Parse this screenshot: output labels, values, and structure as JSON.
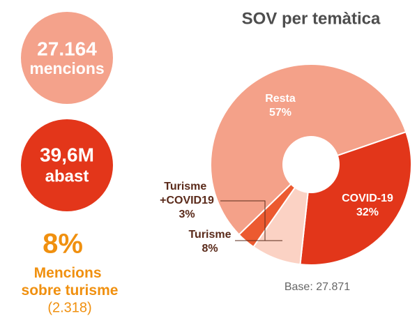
{
  "stats": {
    "mentions": {
      "value": "27.164",
      "label": "mencions"
    },
    "reach": {
      "value": "39,6M",
      "label": "abast"
    },
    "tourism": {
      "value": "8%",
      "label": "Mencions sobre turisme",
      "count": "(2.318)"
    }
  },
  "chart_data": {
    "type": "donut",
    "title": "SOV per temàtica",
    "categories": [
      "COVID-19",
      "Turisme",
      "Turisme +COVID19",
      "Resta"
    ],
    "values": [
      32,
      8,
      3,
      57
    ],
    "value_labels": [
      "32%",
      "8%",
      "3%",
      "57%"
    ],
    "colors": [
      "#e2361a",
      "#fbd2c4",
      "#ec5a30",
      "#f4a189"
    ],
    "note": "Base: 27.871"
  }
}
